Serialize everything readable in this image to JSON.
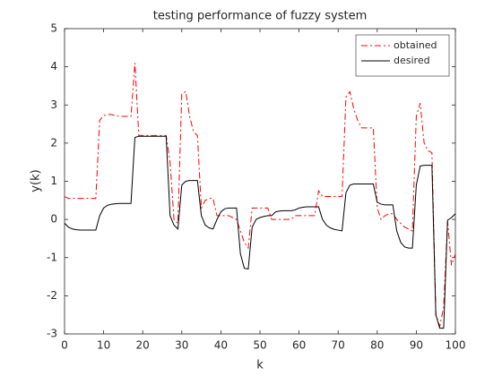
{
  "chart_data": {
    "type": "line",
    "title": "testing performance of fuzzy system",
    "xlabel": "k",
    "ylabel": "y(k)",
    "x": [
      0,
      1,
      2,
      3,
      4,
      5,
      6,
      7,
      8,
      9,
      10,
      11,
      12,
      13,
      14,
      15,
      16,
      17,
      18,
      19,
      20,
      21,
      22,
      23,
      24,
      25,
      26,
      27,
      28,
      29,
      30,
      31,
      32,
      33,
      34,
      35,
      36,
      37,
      38,
      39,
      40,
      41,
      42,
      43,
      44,
      45,
      46,
      47,
      48,
      49,
      50,
      51,
      52,
      53,
      54,
      55,
      56,
      57,
      58,
      59,
      60,
      61,
      62,
      63,
      64,
      65,
      66,
      67,
      68,
      69,
      70,
      71,
      72,
      73,
      74,
      75,
      76,
      77,
      78,
      79,
      80,
      81,
      82,
      83,
      84,
      85,
      86,
      87,
      88,
      89,
      90,
      91,
      92,
      93,
      94,
      95,
      96,
      97,
      98,
      99,
      100
    ],
    "series": [
      {
        "name": "obtained",
        "color": "#ff0000",
        "linestyle": "-.",
        "values": [
          0.6,
          0.55,
          0.55,
          0.55,
          0.55,
          0.55,
          0.55,
          0.55,
          0.55,
          2.6,
          2.72,
          2.75,
          2.75,
          2.72,
          2.7,
          2.7,
          2.7,
          2.7,
          4.1,
          2.2,
          2.2,
          2.2,
          2.2,
          2.2,
          2.2,
          2.2,
          2.2,
          1.5,
          0.0,
          -0.1,
          3.3,
          3.35,
          2.7,
          2.3,
          2.2,
          0.3,
          0.5,
          0.55,
          0.55,
          0.1,
          0.1,
          0.1,
          0.1,
          0.05,
          0.0,
          -0.3,
          -0.6,
          -0.75,
          0.3,
          0.3,
          0.3,
          0.3,
          0.3,
          0.0,
          0.0,
          0.0,
          0.0,
          0.0,
          0.0,
          0.1,
          0.1,
          0.1,
          0.1,
          0.1,
          0.1,
          0.75,
          0.6,
          0.6,
          0.6,
          0.6,
          0.6,
          0.6,
          3.2,
          3.35,
          2.9,
          2.6,
          2.4,
          2.4,
          2.4,
          2.4,
          0.3,
          0.0,
          0.1,
          0.15,
          0.15,
          0.0,
          -0.1,
          -0.2,
          -0.25,
          -0.3,
          2.7,
          3.05,
          2.0,
          1.8,
          1.75,
          -2.5,
          -2.8,
          -2.3,
          -0.05,
          -1.2,
          -0.9
        ]
      },
      {
        "name": "desired",
        "color": "#000000",
        "linestyle": "-",
        "values": [
          -0.1,
          -0.2,
          -0.25,
          -0.27,
          -0.28,
          -0.28,
          -0.28,
          -0.28,
          -0.28,
          0.1,
          0.3,
          0.37,
          0.4,
          0.41,
          0.42,
          0.42,
          0.42,
          0.42,
          2.15,
          2.18,
          2.18,
          2.18,
          2.18,
          2.18,
          2.18,
          2.18,
          2.18,
          0.1,
          -0.15,
          -0.25,
          0.9,
          1.0,
          1.02,
          1.02,
          1.02,
          0.1,
          -0.15,
          -0.22,
          -0.25,
          0.0,
          0.2,
          0.28,
          0.3,
          0.3,
          0.3,
          -0.9,
          -1.28,
          -1.3,
          -0.2,
          0.0,
          0.05,
          0.08,
          0.1,
          0.1,
          0.2,
          0.22,
          0.23,
          0.23,
          0.23,
          0.25,
          0.3,
          0.32,
          0.33,
          0.33,
          0.33,
          0.33,
          0.0,
          -0.15,
          -0.22,
          -0.26,
          -0.28,
          -0.3,
          0.7,
          0.9,
          0.93,
          0.93,
          0.93,
          0.93,
          0.93,
          0.93,
          0.45,
          0.4,
          0.38,
          0.38,
          0.38,
          -0.3,
          -0.6,
          -0.72,
          -0.75,
          -0.75,
          0.9,
          1.4,
          1.42,
          1.42,
          1.42,
          -2.5,
          -2.85,
          -2.85,
          -0.02,
          0.05,
          0.15
        ]
      }
    ],
    "xlim": [
      0,
      100
    ],
    "xticks": [
      0,
      10,
      20,
      30,
      40,
      50,
      60,
      70,
      80,
      90,
      100
    ],
    "ylim": [
      -3,
      5
    ],
    "yticks": [
      -3,
      -2,
      -1,
      0,
      1,
      2,
      3,
      4,
      5
    ],
    "legend": "northeast"
  }
}
